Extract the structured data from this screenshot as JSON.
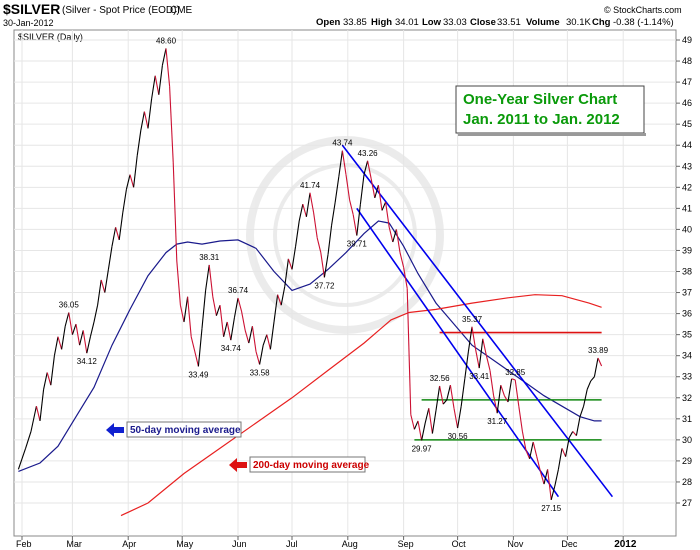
{
  "header": {
    "symbol": "$SILVER",
    "description": "(Silver - Spot Price (EOD))",
    "exchange": "CME",
    "date": "30-Jan-2012",
    "watermark": "© StockCharts.com",
    "open_label": "Open",
    "open": "33.85",
    "high_label": "High",
    "high": "34.01",
    "low_label": "Low",
    "low": "33.03",
    "close_label": "Close",
    "close": "33.51",
    "volume_label": "Volume",
    "volume": "30.1K",
    "chg_label": "Chg",
    "chg": "-0.38 (-1.14%)",
    "legend_label": "$SILVER (Daily)"
  },
  "title_box": {
    "line1": "One-Year Silver Chart",
    "line2": "Jan. 2011 to Jan. 2012",
    "color": "#0a9a0a"
  },
  "annotations": {
    "ma50": "50-day moving average",
    "ma200": "200-day moving average",
    "ma50_color": "#1010a0",
    "ma200_color": "#cc0000"
  },
  "chart_data": {
    "type": "line",
    "x_axis": {
      "labels": [
        "Feb",
        "Mar",
        "Apr",
        "May",
        "Jun",
        "Jul",
        "Aug",
        "Sep",
        "Oct",
        "Nov",
        "Dec",
        "2012"
      ],
      "label_days": [
        0,
        28,
        59,
        89,
        120,
        150,
        181,
        212,
        242,
        273,
        303,
        334
      ]
    },
    "y_axis": {
      "range": [
        26.5,
        49.5
      ],
      "ticks": [
        27,
        28,
        29,
        30,
        31,
        32,
        33,
        34,
        35,
        36,
        37,
        38,
        39,
        40,
        41,
        42,
        43,
        44,
        45,
        46,
        47,
        48,
        49
      ],
      "side": "right"
    },
    "grid": true,
    "series": [
      {
        "name": "$SILVER (Daily)",
        "color": "#000000",
        "down_color": "#cc1133",
        "points": [
          [
            -2,
            28.6
          ],
          [
            2,
            29.6
          ],
          [
            5,
            30.4
          ],
          [
            8,
            31.6
          ],
          [
            10,
            30.9
          ],
          [
            12,
            32.4
          ],
          [
            14,
            33.2
          ],
          [
            16,
            32.6
          ],
          [
            18,
            34.0
          ],
          [
            20,
            34.9
          ],
          [
            22,
            34.3
          ],
          [
            24,
            35.4
          ],
          [
            26,
            36.05
          ],
          [
            28,
            35.0
          ],
          [
            30,
            35.5
          ],
          [
            32,
            34.5
          ],
          [
            34,
            35.2
          ],
          [
            36,
            34.12
          ],
          [
            38,
            34.9
          ],
          [
            40,
            35.6
          ],
          [
            42,
            36.4
          ],
          [
            44,
            37.6
          ],
          [
            46,
            37.0
          ],
          [
            48,
            38.1
          ],
          [
            50,
            39.2
          ],
          [
            52,
            40.1
          ],
          [
            54,
            39.5
          ],
          [
            56,
            40.8
          ],
          [
            58,
            41.9
          ],
          [
            60,
            42.6
          ],
          [
            62,
            42.0
          ],
          [
            64,
            43.5
          ],
          [
            66,
            44.7
          ],
          [
            68,
            45.6
          ],
          [
            70,
            44.8
          ],
          [
            72,
            46.2
          ],
          [
            74,
            47.3
          ],
          [
            76,
            46.4
          ],
          [
            78,
            47.8
          ],
          [
            80,
            48.6
          ],
          [
            82,
            46.8
          ],
          [
            84,
            43.2
          ],
          [
            86,
            38.5
          ],
          [
            88,
            36.4
          ],
          [
            90,
            35.6
          ],
          [
            92,
            36.8
          ],
          [
            94,
            34.9
          ],
          [
            96,
            34.2
          ],
          [
            98,
            33.49
          ],
          [
            100,
            35.3
          ],
          [
            102,
            37.1
          ],
          [
            104,
            38.31
          ],
          [
            106,
            36.8
          ],
          [
            108,
            35.9
          ],
          [
            110,
            36.4
          ],
          [
            112,
            34.9
          ],
          [
            114,
            35.6
          ],
          [
            116,
            34.74
          ],
          [
            118,
            35.8
          ],
          [
            120,
            36.74
          ],
          [
            122,
            36.1
          ],
          [
            124,
            35.2
          ],
          [
            126,
            34.6
          ],
          [
            128,
            35.4
          ],
          [
            130,
            34.2
          ],
          [
            132,
            33.58
          ],
          [
            134,
            34.5
          ],
          [
            136,
            35.0
          ],
          [
            138,
            34.3
          ],
          [
            140,
            35.6
          ],
          [
            142,
            36.9
          ],
          [
            144,
            36.4
          ],
          [
            146,
            37.3
          ],
          [
            148,
            38.6
          ],
          [
            150,
            38.1
          ],
          [
            152,
            39.2
          ],
          [
            154,
            40.4
          ],
          [
            156,
            41.2
          ],
          [
            158,
            40.6
          ],
          [
            160,
            41.74
          ],
          [
            162,
            40.8
          ],
          [
            164,
            39.6
          ],
          [
            166,
            38.9
          ],
          [
            168,
            37.72
          ],
          [
            170,
            38.8
          ],
          [
            172,
            40.2
          ],
          [
            174,
            41.3
          ],
          [
            176,
            42.5
          ],
          [
            178,
            43.74
          ],
          [
            180,
            42.6
          ],
          [
            182,
            41.4
          ],
          [
            184,
            40.7
          ],
          [
            186,
            39.71
          ],
          [
            188,
            41.2
          ],
          [
            190,
            42.6
          ],
          [
            192,
            43.26
          ],
          [
            194,
            42.4
          ],
          [
            196,
            41.5
          ],
          [
            198,
            42.1
          ],
          [
            200,
            40.9
          ],
          [
            202,
            41.3
          ],
          [
            204,
            40.1
          ],
          [
            206,
            39.4
          ],
          [
            208,
            40.0
          ],
          [
            210,
            38.9
          ],
          [
            212,
            38.2
          ],
          [
            214,
            37.2
          ],
          [
            216,
            31.2
          ],
          [
            218,
            30.5
          ],
          [
            220,
            30.9
          ],
          [
            222,
            29.97
          ],
          [
            224,
            30.8
          ],
          [
            226,
            31.5
          ],
          [
            228,
            30.3
          ],
          [
            230,
            31.4
          ],
          [
            232,
            32.56
          ],
          [
            234,
            31.7
          ],
          [
            236,
            31.9
          ],
          [
            238,
            32.6
          ],
          [
            240,
            31.5
          ],
          [
            242,
            30.56
          ],
          [
            244,
            31.6
          ],
          [
            246,
            32.9
          ],
          [
            248,
            34.2
          ],
          [
            250,
            35.37
          ],
          [
            252,
            34.3
          ],
          [
            254,
            33.41
          ],
          [
            256,
            34.8
          ],
          [
            258,
            34.0
          ],
          [
            260,
            33.3
          ],
          [
            262,
            32.1
          ],
          [
            264,
            31.27
          ],
          [
            266,
            32.6
          ],
          [
            268,
            32.1
          ],
          [
            270,
            31.8
          ],
          [
            272,
            32.9
          ],
          [
            274,
            32.85
          ],
          [
            276,
            31.6
          ],
          [
            278,
            30.4
          ],
          [
            280,
            29.5
          ],
          [
            282,
            29.1
          ],
          [
            284,
            29.9
          ],
          [
            286,
            29.2
          ],
          [
            288,
            28.5
          ],
          [
            290,
            27.9
          ],
          [
            292,
            28.6
          ],
          [
            294,
            27.15
          ],
          [
            296,
            27.8
          ],
          [
            298,
            28.6
          ],
          [
            300,
            29.6
          ],
          [
            302,
            29.2
          ],
          [
            304,
            30.1
          ],
          [
            306,
            30.4
          ],
          [
            308,
            30.2
          ],
          [
            310,
            31.1
          ],
          [
            312,
            31.6
          ],
          [
            314,
            32.4
          ],
          [
            316,
            32.8
          ],
          [
            318,
            33.0
          ],
          [
            320,
            33.89
          ],
          [
            322,
            33.51
          ]
        ]
      },
      {
        "name": "50-day moving average",
        "color": "#1a1a8c",
        "points": [
          [
            -2,
            28.5
          ],
          [
            10,
            28.9
          ],
          [
            20,
            29.7
          ],
          [
            30,
            31.1
          ],
          [
            40,
            32.5
          ],
          [
            50,
            34.5
          ],
          [
            60,
            36.2
          ],
          [
            70,
            37.8
          ],
          [
            80,
            38.9
          ],
          [
            86,
            39.3
          ],
          [
            92,
            39.4
          ],
          [
            100,
            39.3
          ],
          [
            110,
            39.45
          ],
          [
            120,
            39.5
          ],
          [
            130,
            39.1
          ],
          [
            140,
            38.0
          ],
          [
            150,
            37.1
          ],
          [
            160,
            37.4
          ],
          [
            170,
            38.1
          ],
          [
            180,
            38.9
          ],
          [
            190,
            39.8
          ],
          [
            198,
            40.4
          ],
          [
            204,
            40.3
          ],
          [
            212,
            39.2
          ],
          [
            220,
            37.9
          ],
          [
            230,
            36.5
          ],
          [
            240,
            35.5
          ],
          [
            250,
            34.5
          ],
          [
            260,
            33.9
          ],
          [
            270,
            33.3
          ],
          [
            280,
            32.7
          ],
          [
            290,
            32.1
          ],
          [
            300,
            31.6
          ],
          [
            310,
            31.1
          ],
          [
            318,
            30.9
          ],
          [
            322,
            30.9
          ]
        ]
      },
      {
        "name": "200-day moving average",
        "color": "#e82020",
        "points": [
          [
            55,
            26.4
          ],
          [
            70,
            27.0
          ],
          [
            90,
            28.4
          ],
          [
            110,
            29.6
          ],
          [
            130,
            30.8
          ],
          [
            150,
            32.0
          ],
          [
            170,
            33.3
          ],
          [
            190,
            34.6
          ],
          [
            205,
            35.7
          ],
          [
            215,
            36.05
          ],
          [
            230,
            36.2
          ],
          [
            250,
            36.5
          ],
          [
            270,
            36.75
          ],
          [
            285,
            36.9
          ],
          [
            300,
            36.85
          ],
          [
            315,
            36.5
          ],
          [
            322,
            36.3
          ]
        ]
      }
    ],
    "point_labels": [
      {
        "x": 80,
        "y": 48.6,
        "text": "48.60",
        "pos": "above"
      },
      {
        "x": 26,
        "y": 36.05,
        "text": "36.05",
        "pos": "above"
      },
      {
        "x": 36,
        "y": 34.12,
        "text": "34.12",
        "pos": "below"
      },
      {
        "x": 98,
        "y": 33.49,
        "text": "33.49",
        "pos": "below"
      },
      {
        "x": 104,
        "y": 38.31,
        "text": "38.31",
        "pos": "above"
      },
      {
        "x": 116,
        "y": 34.74,
        "text": "34.74",
        "pos": "below"
      },
      {
        "x": 120,
        "y": 36.74,
        "text": "36.74",
        "pos": "above"
      },
      {
        "x": 132,
        "y": 33.58,
        "text": "33.58",
        "pos": "below"
      },
      {
        "x": 160,
        "y": 41.74,
        "text": "41.74",
        "pos": "above"
      },
      {
        "x": 168,
        "y": 37.72,
        "text": "37.72",
        "pos": "below"
      },
      {
        "x": 178,
        "y": 43.74,
        "text": "43.74",
        "pos": "above"
      },
      {
        "x": 186,
        "y": 39.71,
        "text": "39.71",
        "pos": "below"
      },
      {
        "x": 192,
        "y": 43.26,
        "text": "43.26",
        "pos": "above"
      },
      {
        "x": 222,
        "y": 29.97,
        "text": "29.97",
        "pos": "below"
      },
      {
        "x": 232,
        "y": 32.56,
        "text": "32.56",
        "pos": "above"
      },
      {
        "x": 242,
        "y": 30.56,
        "text": "30.56",
        "pos": "below"
      },
      {
        "x": 250,
        "y": 35.37,
        "text": "35.37",
        "pos": "above"
      },
      {
        "x": 254,
        "y": 33.41,
        "text": "33.41",
        "pos": "below"
      },
      {
        "x": 264,
        "y": 31.27,
        "text": "31.27",
        "pos": "below"
      },
      {
        "x": 274,
        "y": 32.85,
        "text": "32.85",
        "pos": "above"
      },
      {
        "x": 294,
        "y": 27.15,
        "text": "27.15",
        "pos": "below"
      },
      {
        "x": 320,
        "y": 33.89,
        "text": "33.89",
        "pos": "above"
      }
    ],
    "trend_lines": [
      {
        "color": "#0000ee",
        "from": [
          178,
          44.0
        ],
        "to": [
          328,
          27.3
        ]
      },
      {
        "color": "#0000ee",
        "from": [
          186,
          41.0
        ],
        "to": [
          298,
          27.3
        ]
      }
    ],
    "horizontal_lines": [
      {
        "color": "#dd1111",
        "y": 35.1,
        "from_x": 232,
        "to_x": 322
      },
      {
        "color": "#118811",
        "y": 31.9,
        "from_x": 222,
        "to_x": 322
      },
      {
        "color": "#118811",
        "y": 30.0,
        "from_x": 218,
        "to_x": 322
      }
    ]
  }
}
